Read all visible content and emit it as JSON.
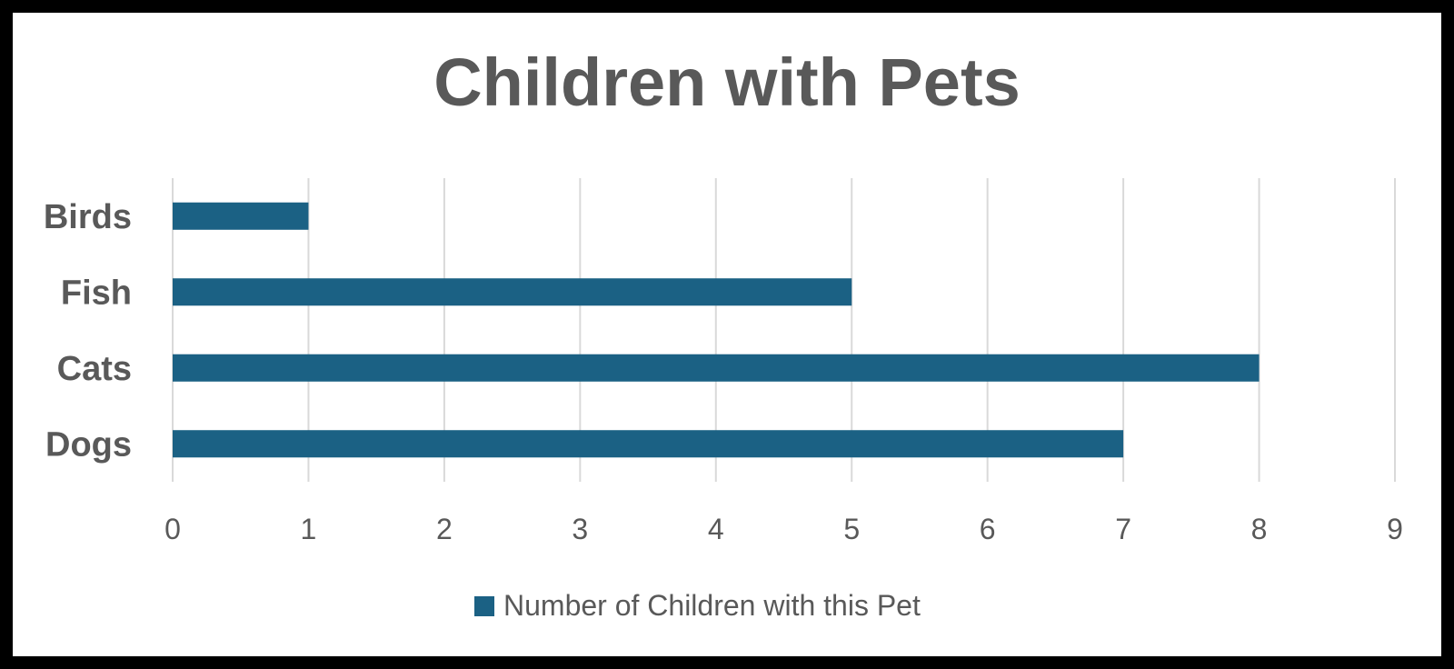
{
  "chart_data": {
    "type": "bar",
    "orientation": "horizontal",
    "title": "Children with Pets",
    "categories": [
      "Birds",
      "Fish",
      "Cats",
      "Dogs"
    ],
    "series": [
      {
        "name": "Number of Children with this Pet",
        "values": [
          1,
          5,
          8,
          7
        ],
        "color": "#1b6184"
      }
    ],
    "xlim": [
      0,
      9
    ],
    "x_ticks": [
      "0",
      "1",
      "2",
      "3",
      "4",
      "5",
      "6",
      "7",
      "8",
      "9"
    ],
    "grid": "vertical",
    "legend_position": "bottom"
  }
}
